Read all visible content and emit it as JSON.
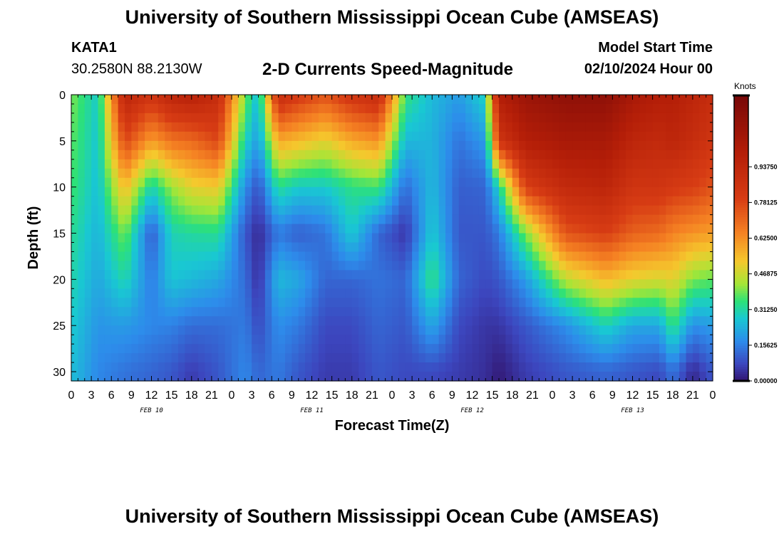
{
  "header": {
    "title": "University of Southern Mississippi Ocean Cube (AMSEAS)",
    "station": "KATA1",
    "coords": "30.2580N  88.2130W",
    "subtitle": "2-D Currents Speed-Magnitude",
    "model_start_label": "Model Start Time",
    "model_start_value": "02/10/2024 Hour 00"
  },
  "footer": {
    "title": "University of Southern Mississippi Ocean Cube (AMSEAS)"
  },
  "chart_data": {
    "type": "heatmap",
    "title": "2-D Currents Speed-Magnitude",
    "xlabel": "Forecast Time(Z)",
    "ylabel": "Depth (ft)",
    "x_hours_range": [
      0,
      96
    ],
    "ylim": [
      0,
      31
    ],
    "x_tick_labels": [
      "0",
      "3",
      "6",
      "9",
      "12",
      "15",
      "18",
      "21",
      "0",
      "3",
      "6",
      "9",
      "12",
      "15",
      "18",
      "21",
      "0",
      "3",
      "6",
      "9",
      "12",
      "15",
      "18",
      "21",
      "0",
      "3",
      "6",
      "9",
      "12",
      "15",
      "18",
      "21",
      "0"
    ],
    "day_labels": [
      "FEB 10",
      "FEB 11",
      "FEB 12",
      "FEB 13"
    ],
    "y_ticks": [
      "0",
      "5",
      "10",
      "15",
      "20",
      "25",
      "30"
    ],
    "colorbar": {
      "unit": "Knots",
      "range": [
        0,
        1.25
      ],
      "tick_labels": [
        "0.00000",
        "0.15625",
        "0.31250",
        "0.46875",
        "0.62500",
        "0.78125",
        "0.93750"
      ]
    },
    "depth_levels_ft": [
      0,
      5,
      10,
      15,
      20,
      25,
      30
    ],
    "speed_profiles_knots": [
      {
        "hour": 0,
        "speeds": [
          0.4,
          0.38,
          0.36,
          0.33,
          0.31,
          0.28,
          0.26
        ]
      },
      {
        "hour": 4,
        "speeds": [
          0.28,
          0.27,
          0.26,
          0.24,
          0.22,
          0.19,
          0.17
        ]
      },
      {
        "hour": 8,
        "speeds": [
          0.95,
          0.78,
          0.55,
          0.4,
          0.31,
          0.2,
          0.14
        ]
      },
      {
        "hour": 12,
        "speeds": [
          0.85,
          0.6,
          0.3,
          0.1,
          0.15,
          0.17,
          0.12
        ]
      },
      {
        "hour": 15,
        "speeds": [
          0.95,
          0.68,
          0.42,
          0.3,
          0.27,
          0.16,
          0.1
        ]
      },
      {
        "hour": 18,
        "speeds": [
          0.98,
          0.7,
          0.5,
          0.32,
          0.25,
          0.13,
          0.06
        ]
      },
      {
        "hour": 22,
        "speeds": [
          0.9,
          0.78,
          0.52,
          0.33,
          0.22,
          0.13,
          0.1
        ]
      },
      {
        "hour": 26,
        "speeds": [
          0.4,
          0.3,
          0.18,
          0.1,
          0.13,
          0.15,
          0.17
        ]
      },
      {
        "hour": 28,
        "speeds": [
          0.25,
          0.2,
          0.09,
          0.03,
          0.04,
          0.08,
          0.12
        ]
      },
      {
        "hour": 31,
        "speeds": [
          0.9,
          0.58,
          0.33,
          0.15,
          0.25,
          0.18,
          0.15
        ]
      },
      {
        "hour": 34,
        "speeds": [
          0.82,
          0.55,
          0.28,
          0.11,
          0.22,
          0.15,
          0.1
        ]
      },
      {
        "hour": 38,
        "speeds": [
          0.75,
          0.5,
          0.28,
          0.14,
          0.12,
          0.08,
          0.06
        ]
      },
      {
        "hour": 42,
        "speeds": [
          0.85,
          0.58,
          0.34,
          0.28,
          0.12,
          0.08,
          0.06
        ]
      },
      {
        "hour": 46,
        "speeds": [
          0.9,
          0.62,
          0.36,
          0.12,
          0.14,
          0.12,
          0.1
        ]
      },
      {
        "hour": 50,
        "speeds": [
          0.35,
          0.25,
          0.13,
          0.05,
          0.12,
          0.1,
          0.08
        ]
      },
      {
        "hour": 54,
        "speeds": [
          0.25,
          0.24,
          0.25,
          0.28,
          0.35,
          0.22,
          0.08
        ]
      },
      {
        "hour": 58,
        "speeds": [
          0.2,
          0.14,
          0.11,
          0.1,
          0.12,
          0.08,
          0.06
        ]
      },
      {
        "hour": 62,
        "speeds": [
          0.3,
          0.2,
          0.12,
          0.1,
          0.08,
          0.05,
          0.04
        ]
      },
      {
        "hour": 64,
        "speeds": [
          1.0,
          0.85,
          0.3,
          0.15,
          0.1,
          0.05,
          0.01
        ]
      },
      {
        "hour": 68,
        "speeds": [
          1.1,
          1.0,
          0.8,
          0.4,
          0.2,
          0.1,
          0.06
        ]
      },
      {
        "hour": 74,
        "speeds": [
          1.15,
          1.05,
          0.92,
          0.75,
          0.45,
          0.18,
          0.1
        ]
      },
      {
        "hour": 80,
        "speeds": [
          1.15,
          1.05,
          0.95,
          0.8,
          0.55,
          0.3,
          0.12
        ]
      },
      {
        "hour": 84,
        "speeds": [
          1.05,
          0.95,
          0.85,
          0.72,
          0.5,
          0.22,
          0.1
        ]
      },
      {
        "hour": 88,
        "speeds": [
          1.0,
          0.92,
          0.85,
          0.7,
          0.48,
          0.22,
          0.08
        ]
      },
      {
        "hour": 90,
        "speeds": [
          1.0,
          0.95,
          0.82,
          0.65,
          0.5,
          0.35,
          0.14
        ]
      },
      {
        "hour": 93,
        "speeds": [
          0.95,
          0.9,
          0.8,
          0.62,
          0.4,
          0.18,
          0.03
        ]
      },
      {
        "hour": 96,
        "speeds": [
          0.9,
          0.85,
          0.75,
          0.6,
          0.38,
          0.2,
          0.1
        ]
      }
    ]
  }
}
